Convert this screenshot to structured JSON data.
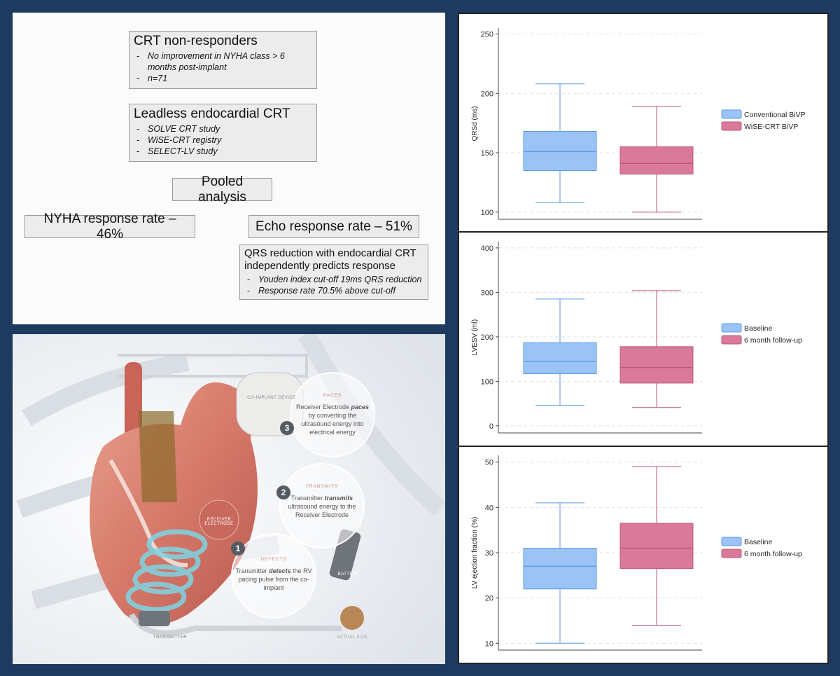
{
  "flowchart": {
    "boxes": [
      {
        "title": "CRT non-responders",
        "items": [
          "No improvement in NYHA class > 6 months post-implant",
          "n=71"
        ]
      },
      {
        "title": "Leadless endocardial CRT",
        "items": [
          "SOLVE CRT study",
          "WiSE-CRT registry",
          "SELECT-LV study"
        ]
      },
      {
        "title": "Pooled analysis"
      },
      {
        "title": "NYHA response rate – 46%"
      },
      {
        "title": "Echo response rate – 51%"
      },
      {
        "title": "QRS reduction with endocardial CRT independently predicts response",
        "items": [
          "Youden index cut-off 19ms QRS reduction",
          "Response rate 70.5% above cut-off"
        ]
      }
    ]
  },
  "illustration": {
    "labels": [
      "CO-IMPLANT DEVICE",
      "RECEIVER ELECTRODE",
      "BATTERY",
      "TRANSMITTER",
      "ACTUAL SIZE"
    ],
    "steps": [
      {
        "number": "3",
        "heading": "PACES",
        "before": "Receiver Electrode",
        "emphasis": "paces",
        "after": "by converting the ultrasound energy into electrical energy"
      },
      {
        "number": "2",
        "heading": "TRANSMITS",
        "before": "Transmitter",
        "emphasis": "transmits",
        "after": "ultrasound energy to the Receiver Electrode"
      },
      {
        "number": "1",
        "heading": "DETECTS",
        "before": "Transmitter",
        "emphasis": "detects",
        "after": "the RV pacing pulse from the co-implant"
      }
    ]
  },
  "chart_data": [
    {
      "type": "box",
      "y_label": "QRSd (ms)",
      "ylim": [
        94,
        255
      ],
      "yticks": [
        100,
        150,
        200,
        250
      ],
      "grid": true,
      "series": [
        {
          "name": "Conventional BiVP",
          "color": "#9cc3f5",
          "min": 108,
          "q1": 135,
          "median": 151,
          "q3": 168,
          "max": 208
        },
        {
          "name": "WiSE-CRT BiVP",
          "color": "#d97a9a",
          "min": 100,
          "q1": 132,
          "median": 141,
          "q3": 155,
          "max": 189
        }
      ]
    },
    {
      "type": "box",
      "y_label": "LVESV (ml)",
      "ylim": [
        -16,
        414
      ],
      "yticks": [
        0,
        100,
        200,
        300,
        400
      ],
      "grid": true,
      "series": [
        {
          "name": "Baseline",
          "color": "#9cc3f5",
          "min": 46,
          "q1": 117,
          "median": 145,
          "q3": 187,
          "max": 285
        },
        {
          "name": "6 month follow-up",
          "color": "#d97a9a",
          "min": 41,
          "q1": 96,
          "median": 131,
          "q3": 178,
          "max": 304
        }
      ]
    },
    {
      "type": "box",
      "y_label": "LV ejection fraction (%)",
      "ylim": [
        8.5,
        51.5
      ],
      "yticks": [
        10,
        20,
        30,
        40,
        50
      ],
      "grid": true,
      "series": [
        {
          "name": "Baseline",
          "color": "#9cc3f5",
          "min": 10,
          "q1": 22,
          "median": 27,
          "q3": 31,
          "max": 41
        },
        {
          "name": "6 month follow-up",
          "color": "#d97a9a",
          "min": 14,
          "q1": 26.5,
          "median": 31,
          "q3": 36.5,
          "max": 49
        }
      ]
    }
  ]
}
